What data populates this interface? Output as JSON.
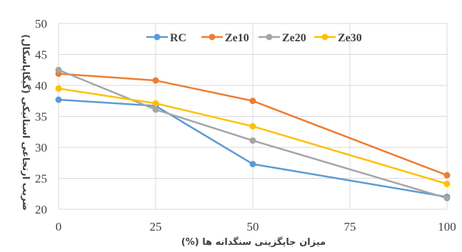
{
  "chart_data": {
    "type": "line",
    "xlabel": "میزان جایگزینی سنگدانه ها (%)",
    "ylabel": "ضریب ارتجاعی استاتیکی (گیگاپاسکال)",
    "x": [
      0,
      25,
      50,
      100
    ],
    "xlim": [
      0,
      100
    ],
    "ylim": [
      20,
      50
    ],
    "xticks": [
      0,
      25,
      50,
      75,
      100
    ],
    "yticks": [
      20,
      25,
      30,
      35,
      40,
      45,
      50
    ],
    "grid": true,
    "legend_position": "top",
    "series": [
      {
        "name": "RC",
        "color": "#5B9BD5",
        "values": [
          37.7,
          36.7,
          27.3,
          22.0
        ]
      },
      {
        "name": "Ze10",
        "color": "#ED7D31",
        "values": [
          41.9,
          40.8,
          37.5,
          25.5
        ]
      },
      {
        "name": "Ze20",
        "color": "#A5A5A5",
        "values": [
          42.5,
          36.1,
          31.1,
          21.8
        ]
      },
      {
        "name": "Ze30",
        "color": "#FFC000",
        "values": [
          39.5,
          37.1,
          33.4,
          24.1
        ]
      }
    ]
  }
}
